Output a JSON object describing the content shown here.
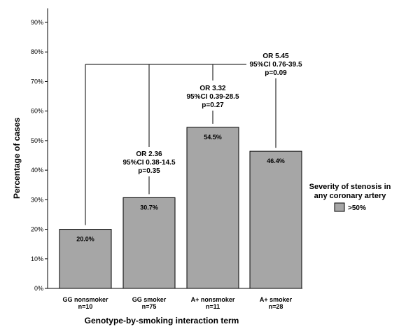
{
  "chart_data": {
    "type": "bar",
    "categories": [
      [
        "GG nonsmoker",
        "n=10"
      ],
      [
        "GG smoker",
        "n=75"
      ],
      [
        "A+ nonsmoker",
        "n=11"
      ],
      [
        "A+ smoker",
        "n=28"
      ]
    ],
    "values": [
      20.0,
      30.7,
      54.5,
      46.4
    ],
    "value_labels": [
      "20.0%",
      "30.7%",
      "54.5%",
      "46.4%"
    ],
    "xlabel": "Genotype-by-smoking interaction term",
    "ylabel": "Percentage of cases",
    "ylim": [
      0,
      90
    ],
    "yticks": [
      0,
      10,
      20,
      30,
      40,
      50,
      60,
      70,
      80,
      90
    ],
    "ytick_labels": [
      "0%",
      "10%",
      "20%",
      "30%",
      "40%",
      "50%",
      "60%",
      "70%",
      "80%",
      "90%"
    ],
    "grid": false,
    "bar_color": "#a6a6a6",
    "annotations": [
      {
        "lines": [
          "OR 2.36",
          "95%CI 0.38-14.5",
          "p=0.35"
        ],
        "compares": [
          0,
          1
        ]
      },
      {
        "lines": [
          "OR 3.32",
          "95%CI 0.39-28.5",
          "p=0.27"
        ],
        "compares": [
          0,
          2
        ]
      },
      {
        "lines": [
          "OR 5.45",
          "95%CI 0.76-39.5",
          "p=0.09"
        ],
        "compares": [
          0,
          3
        ]
      }
    ],
    "legend": {
      "title": [
        "Severity of stenosis in",
        "any coronary artery"
      ],
      "entries": [
        {
          "label": ">50%",
          "color": "#a6a6a6"
        }
      ],
      "position": "right"
    }
  }
}
